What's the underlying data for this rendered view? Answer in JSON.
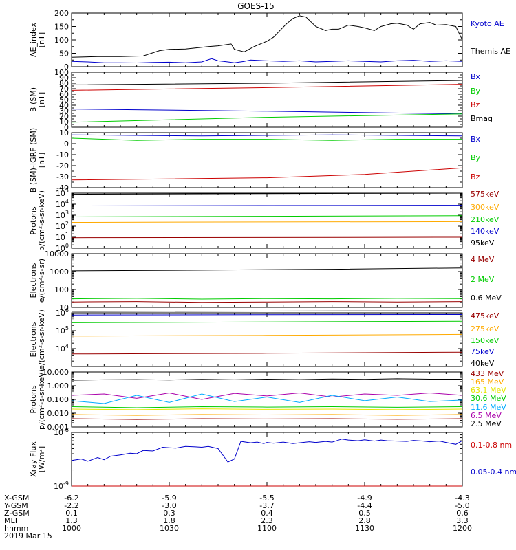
{
  "title": "GOES-15",
  "colors": {
    "black": "#000000",
    "blue": "#0000cc",
    "green": "#00cc00",
    "red": "#cc0000",
    "orange": "#ffaa00",
    "yellow": "#e6e600",
    "cyan": "#00aaff",
    "purple": "#aa00aa",
    "dark_red": "#990000"
  },
  "chart_data": [
    {
      "type": "line",
      "ylabel": [
        "AE_index",
        "[nT]"
      ],
      "yscale": "linear",
      "ylim": [
        0,
        200
      ],
      "yticks": [
        "0",
        "50",
        "100",
        "150",
        "200"
      ],
      "legend": [
        {
          "label": "Kyoto AE",
          "color": "blue"
        },
        {
          "label": "Themis AE",
          "color": "black"
        }
      ],
      "series": [
        {
          "name": "Themis AE",
          "color": "black",
          "x": [
            0,
            8,
            15,
            22,
            27,
            30,
            35,
            38,
            42,
            45,
            49,
            50,
            53,
            56,
            60,
            62,
            64,
            66,
            68,
            70,
            72,
            75,
            78,
            80,
            82,
            85,
            88,
            90,
            93,
            95,
            98,
            100,
            103,
            105,
            107,
            110,
            112,
            115,
            118,
            120,
            120
          ],
          "y": [
            35,
            38,
            38,
            40,
            60,
            65,
            66,
            70,
            75,
            78,
            85,
            65,
            55,
            75,
            95,
            110,
            135,
            160,
            180,
            190,
            185,
            150,
            135,
            140,
            140,
            155,
            150,
            145,
            135,
            150,
            160,
            162,
            155,
            140,
            160,
            165,
            155,
            157,
            150,
            100,
            75
          ]
        },
        {
          "name": "Kyoto AE",
          "color": "blue",
          "x": [
            0,
            5,
            10,
            15,
            20,
            25,
            30,
            35,
            40,
            43,
            45,
            48,
            50,
            53,
            55,
            60,
            65,
            70,
            75,
            80,
            85,
            90,
            95,
            100,
            105,
            110,
            115,
            120
          ],
          "y": [
            20,
            18,
            15,
            15,
            14,
            16,
            17,
            15,
            18,
            30,
            22,
            18,
            15,
            20,
            25,
            22,
            20,
            22,
            18,
            20,
            22,
            20,
            18,
            22,
            24,
            20,
            22,
            20
          ]
        }
      ]
    },
    {
      "type": "line",
      "ylabel": [
        "B (SM)",
        "[nT]"
      ],
      "yscale": "linear",
      "ylim": [
        0,
        100
      ],
      "yticks": [
        "0",
        "10",
        "20",
        "30",
        "40",
        "50",
        "60",
        "70",
        "80",
        "90",
        "100"
      ],
      "legend": [
        {
          "label": "Bx",
          "color": "blue"
        },
        {
          "label": "By",
          "color": "green"
        },
        {
          "label": "Bz",
          "color": "red"
        },
        {
          "label": "Bmag",
          "color": "black"
        }
      ],
      "series": [
        {
          "name": "Bmag",
          "color": "black",
          "x": [
            0,
            60,
            120
          ],
          "y": [
            77,
            80,
            85
          ]
        },
        {
          "name": "Bz",
          "color": "red",
          "x": [
            0,
            60,
            120
          ],
          "y": [
            67,
            72,
            78
          ]
        },
        {
          "name": "Bx",
          "color": "blue",
          "x": [
            0,
            60,
            120
          ],
          "y": [
            33,
            29,
            24
          ]
        },
        {
          "name": "By",
          "color": "green",
          "x": [
            0,
            60,
            120
          ],
          "y": [
            9,
            18,
            24
          ]
        }
      ]
    },
    {
      "type": "line",
      "ylabel": [
        "B (SM)-IGRF (SM)",
        "[nT]"
      ],
      "yscale": "linear",
      "ylim": [
        -40,
        10
      ],
      "yticks": [
        "-40",
        "-30",
        "-20",
        "-10",
        "0",
        "10"
      ],
      "legend": [
        {
          "label": "Bx",
          "color": "blue"
        },
        {
          "label": "By",
          "color": "green"
        },
        {
          "label": "Bz",
          "color": "red"
        }
      ],
      "series": [
        {
          "name": "Bx",
          "color": "blue",
          "x": [
            0,
            40,
            80,
            120
          ],
          "y": [
            8,
            7,
            8,
            7
          ]
        },
        {
          "name": "By",
          "color": "green",
          "x": [
            0,
            20,
            40,
            60,
            80,
            100,
            120
          ],
          "y": [
            5,
            3,
            4,
            4,
            3,
            4,
            4
          ]
        },
        {
          "name": "Bz",
          "color": "red",
          "x": [
            0,
            30,
            60,
            90,
            120
          ],
          "y": [
            -33,
            -32,
            -31,
            -28,
            -22
          ]
        }
      ]
    },
    {
      "type": "line",
      "ylabel": [
        "Protons",
        "p/(cm²-s-sr-keV)"
      ],
      "yscale": "log",
      "ylim": [
        1,
        100000
      ],
      "yticks": [
        "10^0",
        "10^1",
        "10^2",
        "10^3",
        "10^4",
        "10^5"
      ],
      "legend": [
        {
          "label": "575keV",
          "color": "dark_red"
        },
        {
          "label": "300keV",
          "color": "orange"
        },
        {
          "label": "210keV",
          "color": "green"
        },
        {
          "label": "140keV",
          "color": "blue"
        },
        {
          "label": "95keV",
          "color": "black"
        }
      ],
      "series": [
        {
          "name": "95keV",
          "color": "black",
          "x": [
            0,
            60,
            120
          ],
          "y": [
            80000,
            90000,
            100000
          ]
        },
        {
          "name": "140keV",
          "color": "blue",
          "x": [
            0,
            60,
            120
          ],
          "y": [
            7000,
            7500,
            8000
          ]
        },
        {
          "name": "210keV",
          "color": "green",
          "x": [
            0,
            60,
            120
          ],
          "y": [
            700,
            800,
            900
          ]
        },
        {
          "name": "300keV",
          "color": "orange",
          "x": [
            0,
            60,
            120
          ],
          "y": [
            220,
            240,
            260
          ]
        },
        {
          "name": "575keV",
          "color": "dark_red",
          "x": [
            0,
            60,
            120
          ],
          "y": [
            9,
            9.5,
            10
          ]
        }
      ]
    },
    {
      "type": "line",
      "ylabel": [
        "Electrons",
        "e/(cm²-s-sr)"
      ],
      "yscale": "log",
      "ylim": [
        10,
        10000
      ],
      "yticks": [
        "10",
        "100",
        "1000",
        "10000"
      ],
      "legend": [
        {
          "label": "4 MeV",
          "color": "dark_red"
        },
        {
          "label": "2 MeV",
          "color": "green"
        },
        {
          "label": "0.6 MeV",
          "color": "black"
        }
      ],
      "series": [
        {
          "name": "0.6 MeV",
          "color": "black",
          "x": [
            0,
            40,
            80,
            120
          ],
          "y": [
            1100,
            1200,
            1350,
            1600
          ]
        },
        {
          "name": "2 MeV",
          "color": "green",
          "x": [
            0,
            20,
            40,
            60,
            80,
            100,
            120
          ],
          "y": [
            30,
            32,
            29,
            31,
            30,
            32,
            31
          ]
        },
        {
          "name": "4 MeV",
          "color": "dark_red",
          "x": [
            0,
            20,
            40,
            60,
            80,
            100,
            120
          ],
          "y": [
            20,
            21,
            19,
            20,
            21,
            20,
            21
          ]
        }
      ]
    },
    {
      "type": "line",
      "ylabel": [
        "Electrons",
        "e/(cm²-s-sr-keV)"
      ],
      "yscale": "log",
      "ylim": [
        1000,
        1000000
      ],
      "yticks": [
        "10^4",
        "10^5",
        "10^6"
      ],
      "legend": [
        {
          "label": "475keV",
          "color": "dark_red"
        },
        {
          "label": "275keV",
          "color": "orange"
        },
        {
          "label": "150keV",
          "color": "green"
        },
        {
          "label": "75keV",
          "color": "blue"
        },
        {
          "label": "40keV",
          "color": "black"
        }
      ],
      "series": [
        {
          "name": "40keV",
          "color": "black",
          "x": [
            0,
            60,
            120
          ],
          "y": [
            1200000,
            1250000,
            1300000
          ]
        },
        {
          "name": "75keV",
          "color": "blue",
          "x": [
            0,
            60,
            120
          ],
          "y": [
            750000,
            780000,
            800000
          ]
        },
        {
          "name": "150keV",
          "color": "green",
          "x": [
            0,
            60,
            120
          ],
          "y": [
            280000,
            310000,
            340000
          ]
        },
        {
          "name": "275keV",
          "color": "orange",
          "x": [
            0,
            60,
            120
          ],
          "y": [
            50000,
            55000,
            62000
          ]
        },
        {
          "name": "475keV",
          "color": "dark_red",
          "x": [
            0,
            60,
            120
          ],
          "y": [
            5000,
            5500,
            6300
          ]
        }
      ]
    },
    {
      "type": "line",
      "ylabel": [
        "Protons",
        "p/(cm²-s-sr-keV)"
      ],
      "yscale": "log",
      "ylim": [
        0.001,
        10
      ],
      "yticks": [
        "0.001",
        "0.010",
        "0.100",
        "1.000",
        "10.000"
      ],
      "legend": [
        {
          "label": "433 MeV",
          "color": "dark_red"
        },
        {
          "label": "165 MeV",
          "color": "orange"
        },
        {
          "label": "63.1 MeV",
          "color": "yellow"
        },
        {
          "label": "30.6 MeV",
          "color": "green"
        },
        {
          "label": "11.6 MeV",
          "color": "cyan"
        },
        {
          "label": "6.5 MeV",
          "color": "purple"
        },
        {
          "label": "2.5 MeV",
          "color": "black"
        }
      ],
      "series": [
        {
          "name": "2.5 MeV",
          "color": "black",
          "x": [
            0,
            10,
            20,
            30,
            40,
            50,
            60,
            70,
            80,
            90,
            100,
            110,
            120
          ],
          "y": [
            2.5,
            2.7,
            2.8,
            2.6,
            2.9,
            2.7,
            3.0,
            2.8,
            3.1,
            2.9,
            3.2,
            3.0,
            3.0
          ]
        },
        {
          "name": "6.5 MeV",
          "color": "purple",
          "x": [
            0,
            10,
            20,
            30,
            40,
            50,
            60,
            70,
            80,
            90,
            100,
            110,
            120
          ],
          "y": [
            0.2,
            0.25,
            0.12,
            0.3,
            0.1,
            0.28,
            0.18,
            0.3,
            0.15,
            0.25,
            0.2,
            0.3,
            0.2
          ]
        },
        {
          "name": "11.6 MeV",
          "color": "cyan",
          "x": [
            0,
            10,
            20,
            30,
            40,
            50,
            60,
            70,
            80,
            90,
            100,
            110,
            120
          ],
          "y": [
            0.08,
            0.05,
            0.2,
            0.06,
            0.25,
            0.07,
            0.15,
            0.06,
            0.2,
            0.08,
            0.15,
            0.07,
            0.09
          ]
        },
        {
          "name": "30.6 MeV",
          "color": "green",
          "x": [
            0,
            20,
            40,
            60,
            80,
            100,
            120
          ],
          "y": [
            0.03,
            0.025,
            0.03,
            0.028,
            0.03,
            0.027,
            0.03
          ]
        },
        {
          "name": "63.1 MeV",
          "color": "yellow",
          "x": [
            0,
            20,
            40,
            60,
            80,
            100,
            120
          ],
          "y": [
            0.02,
            0.018,
            0.021,
            0.019,
            0.02,
            0.018,
            0.02
          ]
        },
        {
          "name": "165 MeV",
          "color": "orange",
          "x": [
            0,
            20,
            40,
            60,
            80,
            100,
            120
          ],
          "y": [
            0.008,
            0.007,
            0.008,
            0.0075,
            0.008,
            0.007,
            0.008
          ]
        },
        {
          "name": "433 MeV",
          "color": "dark_red",
          "x": [
            0,
            20,
            40,
            60,
            80,
            100,
            120
          ],
          "y": [
            0.004,
            0.0035,
            0.004,
            0.0038,
            0.004,
            0.0036,
            0.004
          ]
        }
      ]
    },
    {
      "type": "line",
      "ylabel": [
        "Xray Flux",
        "[W/m²]"
      ],
      "yscale": "log",
      "ylim": [
        1e-09,
        1e-08
      ],
      "yticks": [
        "10^-9",
        "10^-8"
      ],
      "legend": [
        {
          "label": "0.1-0.8 nm",
          "color": "red"
        },
        {
          "label": "0.05-0.4 nm",
          "color": "blue"
        }
      ],
      "series": [
        {
          "name": "0.05-0.4 nm",
          "color": "blue",
          "x": [
            0,
            3,
            5,
            8,
            10,
            12,
            15,
            18,
            20,
            22,
            25,
            28,
            30,
            32,
            35,
            38,
            40,
            42,
            45,
            47,
            48,
            50,
            52,
            55,
            57,
            59,
            60,
            62,
            65,
            68,
            70,
            73,
            75,
            78,
            80,
            83,
            85,
            88,
            90,
            93,
            95,
            97,
            100,
            103,
            105,
            108,
            110,
            113,
            115,
            118,
            120
          ],
          "y": [
            3e-09,
            3.2e-09,
            2.9e-09,
            3.4e-09,
            3.1e-09,
            3.6e-09,
            3.8e-09,
            4.1e-09,
            4e-09,
            4.6e-09,
            4.5e-09,
            5.3e-09,
            5.2e-09,
            5.1e-09,
            5.5e-09,
            5.4e-09,
            5.3e-09,
            5.5e-09,
            5e-09,
            3.4e-09,
            2.8e-09,
            3.2e-09,
            6.8e-09,
            6.4e-09,
            6.6e-09,
            6.2e-09,
            6.5e-09,
            6.3e-09,
            6.6e-09,
            6.2e-09,
            6.4e-09,
            6.7e-09,
            6.5e-09,
            6.8e-09,
            6.6e-09,
            7.5e-09,
            7.2e-09,
            7e-09,
            7.3e-09,
            6.9e-09,
            7.2e-09,
            7e-09,
            6.9e-09,
            6.8e-09,
            7.1e-09,
            6.9e-09,
            6.7e-09,
            6.9e-09,
            6.5e-09,
            6e-09,
            7e-09
          ]
        },
        {
          "name": "0.1-0.8 nm",
          "color": "red",
          "x": [
            0,
            120
          ],
          "y": [
            1e-09,
            1e-09
          ]
        }
      ]
    }
  ],
  "x_axis": {
    "row_labels": [
      "X-GSM",
      "Y-GSM",
      "Z-GSM",
      "MLT",
      "hhmm"
    ],
    "date": "2019 Mar 15",
    "ticks": [
      {
        "x": 0,
        "values": [
          "-6.2",
          "-2.2",
          "0.1",
          "1.3",
          "1000"
        ]
      },
      {
        "x": 30,
        "values": [
          "-5.9",
          "-3.0",
          "0.3",
          "1.8",
          "1030"
        ]
      },
      {
        "x": 60,
        "values": [
          "-5.5",
          "-3.7",
          "0.4",
          "2.3",
          "1100"
        ]
      },
      {
        "x": 90,
        "values": [
          "-4.9",
          "-4.4",
          "0.5",
          "2.8",
          "1130"
        ]
      },
      {
        "x": 120,
        "values": [
          "-4.3",
          "-5.0",
          "0.6",
          "3.3",
          "1200"
        ]
      }
    ]
  }
}
